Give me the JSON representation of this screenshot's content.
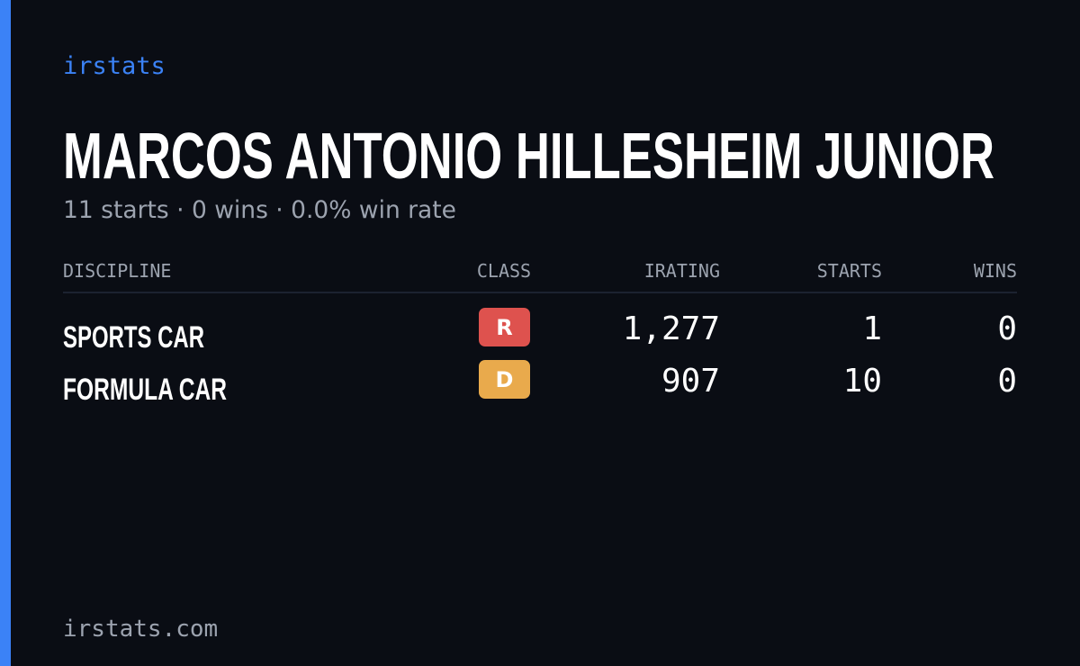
{
  "brand": "irstats",
  "title": "MARCOS ANTONIO HILLESHEIM JUNIOR",
  "subtitle": "11 starts · 0 wins · 0.0% win rate",
  "table": {
    "headers": [
      "DISCIPLINE",
      "CLASS",
      "IRATING",
      "STARTS",
      "WINS"
    ],
    "rows": [
      {
        "discipline": "SPORTS CAR",
        "class": "R",
        "class_color": "#de524e",
        "irating": "1,277",
        "starts": 1,
        "wins": 0
      },
      {
        "discipline": "FORMULA CAR",
        "class": "D",
        "class_color": "#e9aa4c",
        "irating": "907",
        "starts": 10,
        "wins": 0
      }
    ]
  },
  "footer": "irstats.com"
}
